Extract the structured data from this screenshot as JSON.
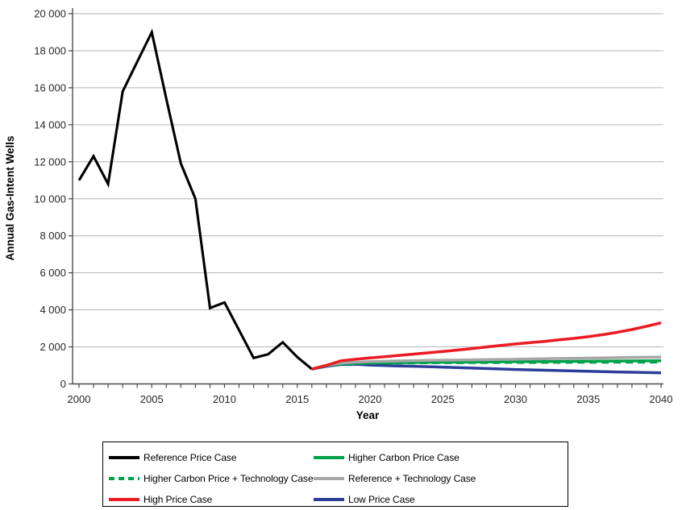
{
  "chart_data": {
    "type": "line",
    "title": "",
    "xlabel": "Year",
    "ylabel": "Annual Gas-Intent Wells",
    "xlim": [
      2000,
      2040
    ],
    "ylim": [
      0,
      20000
    ],
    "grid": "horizontal",
    "legend_position": "bottom",
    "x_major_ticks": [
      2000,
      2005,
      2010,
      2015,
      2020,
      2025,
      2030,
      2035,
      2040
    ],
    "x_tick_labels": [
      "2000",
      "2005",
      "2010",
      "2015",
      "2020",
      "2025",
      "2030",
      "2035",
      "2040"
    ],
    "x_minor_tick_interval": 1,
    "y_ticks": [
      0,
      2000,
      4000,
      6000,
      8000,
      10000,
      12000,
      14000,
      16000,
      18000,
      20000
    ],
    "y_tick_labels": [
      "0",
      "2 000",
      "4 000",
      "6 000",
      "8 000",
      "10 000",
      "12 000",
      "14 000",
      "16 000",
      "18 000",
      "20 000"
    ],
    "series": [
      {
        "id": "reference-price",
        "name": "Reference Price Case",
        "color": "#000000",
        "style": "solid",
        "x": [
          2000,
          2001,
          2002,
          2003,
          2004,
          2005,
          2006,
          2007,
          2008,
          2009,
          2010,
          2011,
          2012,
          2013,
          2014,
          2015,
          2016
        ],
        "y": [
          11000,
          12300,
          10800,
          15800,
          17400,
          19000,
          15400,
          11900,
          10000,
          4100,
          4400,
          2900,
          1400,
          1600,
          2250,
          1450,
          800
        ]
      },
      {
        "id": "low-price",
        "name": "Low Price Case",
        "color": "#2b3d97",
        "style": "solid",
        "x": [
          2016,
          2017,
          2018,
          2019,
          2020,
          2022,
          2024,
          2026,
          2028,
          2030,
          2032,
          2034,
          2036,
          2038,
          2040
        ],
        "y": [
          800,
          950,
          1050,
          1060,
          1020,
          970,
          930,
          880,
          830,
          780,
          740,
          700,
          660,
          630,
          600
        ]
      },
      {
        "id": "higher-carbon-tech",
        "name": "Higher Carbon Price + Technology Case",
        "color": "#00a14b",
        "style": "dashed",
        "x": [
          2016,
          2017,
          2018,
          2019,
          2020,
          2022,
          2024,
          2026,
          2028,
          2030,
          2032,
          2034,
          2036,
          2038,
          2040
        ],
        "y": [
          800,
          980,
          1060,
          1090,
          1110,
          1125,
          1135,
          1140,
          1145,
          1150,
          1155,
          1160,
          1160,
          1165,
          1170
        ]
      },
      {
        "id": "higher-carbon",
        "name": "Higher Carbon Price Case",
        "color": "#00a14b",
        "style": "solid",
        "x": [
          2016,
          2017,
          2018,
          2019,
          2020,
          2022,
          2024,
          2026,
          2028,
          2030,
          2032,
          2034,
          2036,
          2038,
          2040
        ],
        "y": [
          800,
          990,
          1080,
          1110,
          1130,
          1150,
          1165,
          1175,
          1190,
          1200,
          1210,
          1220,
          1230,
          1240,
          1250
        ]
      },
      {
        "id": "reference-tech",
        "name": "Reference + Technology Case",
        "color": "#a6a6a6",
        "style": "solid",
        "x": [
          2016,
          2017,
          2018,
          2019,
          2020,
          2022,
          2024,
          2026,
          2028,
          2030,
          2032,
          2034,
          2036,
          2038,
          2040
        ],
        "y": [
          800,
          1000,
          1120,
          1170,
          1200,
          1240,
          1270,
          1290,
          1310,
          1330,
          1360,
          1380,
          1400,
          1430,
          1450
        ]
      },
      {
        "id": "high-price",
        "name": "High Price Case",
        "color": "#ec1b23",
        "style": "solid",
        "x": [
          2016,
          2017,
          2018,
          2019,
          2020,
          2021,
          2022,
          2023,
          2024,
          2025,
          2026,
          2027,
          2028,
          2029,
          2030,
          2031,
          2032,
          2033,
          2034,
          2035,
          2036,
          2037,
          2038,
          2039,
          2040
        ],
        "y": [
          800,
          1000,
          1250,
          1330,
          1400,
          1470,
          1540,
          1610,
          1680,
          1750,
          1830,
          1910,
          2000,
          2080,
          2160,
          2230,
          2300,
          2380,
          2460,
          2550,
          2660,
          2790,
          2940,
          3110,
          3300
        ]
      }
    ]
  },
  "axes": {
    "x_title": "Year",
    "y_title": "Annual Gas-Intent Wells"
  },
  "legend": {
    "items": [
      {
        "label": "Reference Price Case",
        "color": "#000000",
        "style": "solid"
      },
      {
        "label": "Higher Carbon Price Case",
        "color": "#00a14b",
        "style": "solid"
      },
      {
        "label": "Higher Carbon Price + Technology Case",
        "color": "#00a14b",
        "style": "dashed"
      },
      {
        "label": "Reference + Technology Case",
        "color": "#a6a6a6",
        "style": "solid"
      },
      {
        "label": "High Price Case",
        "color": "#ec1b23",
        "style": "solid"
      },
      {
        "label": "Low Price Case",
        "color": "#2b3d97",
        "style": "solid"
      }
    ]
  },
  "colors": {
    "gridline": "#b3b3b3",
    "axis": "#4d4d4d",
    "tick_label": "#262626"
  }
}
